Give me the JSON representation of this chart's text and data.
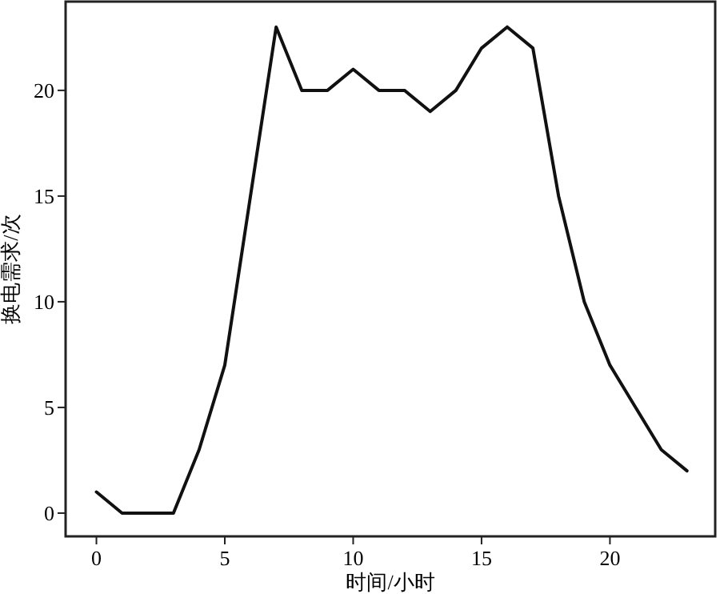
{
  "chart_data": {
    "type": "line",
    "xlabel": "时间/小时",
    "ylabel": "换电需求/次",
    "x": [
      0,
      1,
      2,
      3,
      4,
      5,
      6,
      7,
      8,
      9,
      10,
      11,
      12,
      13,
      14,
      15,
      16,
      17,
      18,
      19,
      20,
      21,
      22,
      23
    ],
    "series": [
      {
        "color": "#111111",
        "values": [
          1,
          0,
          0,
          0,
          3,
          7,
          15,
          23,
          20,
          20,
          21,
          20,
          20,
          19,
          20,
          22,
          23,
          22,
          15,
          10,
          7,
          5,
          3,
          2
        ]
      }
    ],
    "xlim": [
      -1.2,
      24.1
    ],
    "ylim": [
      -1.1,
      24.2
    ],
    "xticks": [
      0,
      5,
      10,
      15,
      20
    ],
    "yticks": [
      0,
      5,
      10,
      15,
      20
    ],
    "grid": false,
    "marker": "none",
    "line_style": "solid"
  }
}
